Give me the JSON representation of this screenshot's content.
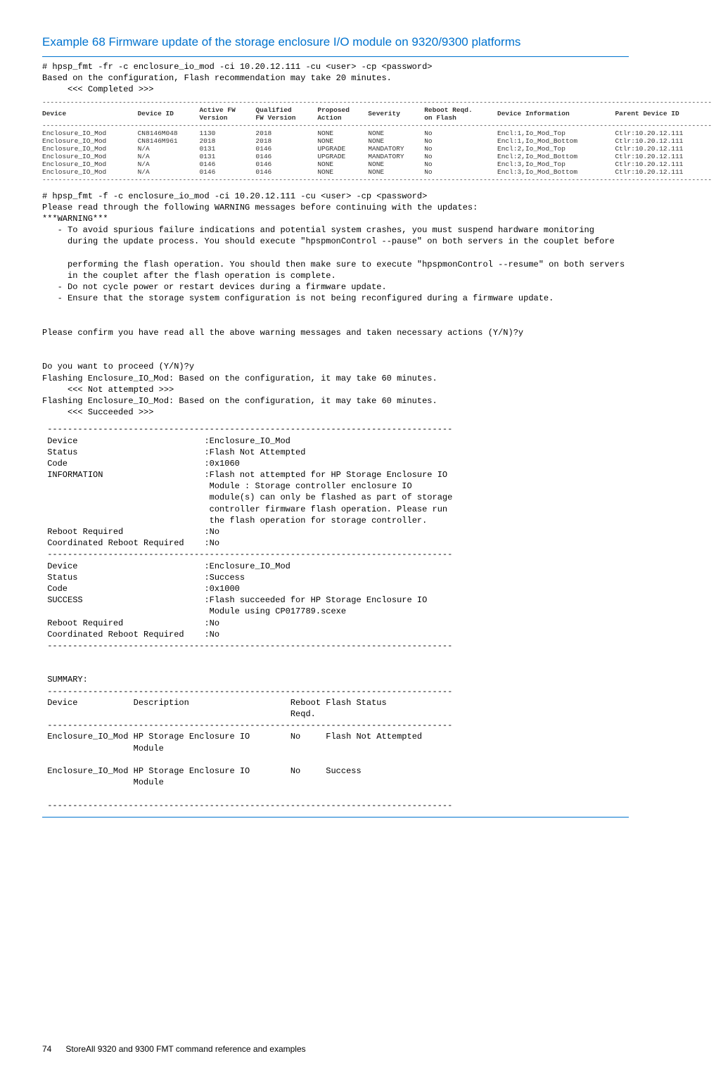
{
  "heading": "Example 68 Firmware update of the storage enclosure I/O module on 9320/9300 platforms",
  "cmd1_line1": "# hpsp_fmt -fr -c enclosure_io_mod -ci 10.20.12.111 -cu <user> -cp <password>",
  "cmd1_line2": "Based on the configuration, Flash recommendation may take 20 minutes.",
  "cmd1_line3": "     <<< Completed >>>",
  "table1": {
    "headers": [
      "Device",
      "Device ID",
      "Active FW\nVersion",
      "Qualified\nFW Version",
      "Proposed\nAction",
      "Severity",
      "Reboot Reqd.\non Flash",
      "Device Information",
      "Parent Device ID"
    ],
    "rows": [
      [
        "Enclosure_IO_Mod",
        "CN8146M048",
        "1130",
        "2018",
        "NONE",
        "NONE",
        "No",
        "Encl:1,Io_Mod_Top",
        "Ctlr:10.20.12.111"
      ],
      [
        "Enclosure_IO_Mod",
        "CN8146M961",
        "2018",
        "2018",
        "NONE",
        "NONE",
        "No",
        "Encl:1,Io_Mod_Bottom",
        "Ctlr:10.20.12.111"
      ],
      [
        "Enclosure_IO_Mod",
        "N/A",
        "0131",
        "0146",
        "UPGRADE",
        "MANDATORY",
        "No",
        "Encl:2,Io_Mod_Top",
        "Ctlr:10.20.12.111"
      ],
      [
        "Enclosure_IO_Mod",
        "N/A",
        "0131",
        "0146",
        "UPGRADE",
        "MANDATORY",
        "No",
        "Encl:2,Io_Mod_Bottom",
        "Ctlr:10.20.12.111"
      ],
      [
        "Enclosure_IO_Mod",
        "N/A",
        "0146",
        "0146",
        "NONE",
        "NONE",
        "No",
        "Encl:3,Io_Mod_Top",
        "Ctlr:10.20.12.111"
      ],
      [
        "Enclosure_IO_Mod",
        "N/A",
        "0146",
        "0146",
        "NONE",
        "NONE",
        "No",
        "Encl:3,Io_Mod_Bottom",
        "Ctlr:10.20.12.111"
      ]
    ]
  },
  "block2": "# hpsp_fmt -f -c enclosure_io_mod -ci 10.20.12.111 -cu <user> -cp <password>\nPlease read through the following WARNING messages before continuing with the updates:\n***WARNING***\n   - To avoid spurious failure indications and potential system crashes, you must suspend hardware monitoring\n     during the update process. You should execute \"hpspmonControl --pause\" on both servers in the couplet before\n\n     performing the flash operation. You should then make sure to execute \"hpspmonControl --resume\" on both servers\n     in the couplet after the flash operation is complete.\n   - Do not cycle power or restart devices during a firmware update.\n   - Ensure that the storage system configuration is not being reconfigured during a firmware update.\n\n\nPlease confirm you have read all the above warning messages and taken necessary actions (Y/N)?y\n\n\nDo you want to proceed (Y/N)?y\nFlashing Enclosure_IO_Mod: Based on the configuration, it may take 60 minutes.\n     <<< Not attempted >>>\nFlashing Enclosure_IO_Mod: Based on the configuration, it may take 60 minutes.\n     <<< Succeeded >>>\n",
  "block3": " --------------------------------------------------------------------------------\n Device                         :Enclosure_IO_Mod\n Status                         :Flash Not Attempted\n Code                           :0x1060\n INFORMATION                    :Flash not attempted for HP Storage Enclosure IO\n                                 Module : Storage controller enclosure IO\n                                 module(s) can only be flashed as part of storage\n                                 controller firmware flash operation. Please run\n                                 the flash operation for storage controller.\n Reboot Required                :No\n Coordinated Reboot Required    :No\n --------------------------------------------------------------------------------\n Device                         :Enclosure_IO_Mod\n Status                         :Success\n Code                           :0x1000\n SUCCESS                        :Flash succeeded for HP Storage Enclosure IO\n                                 Module using CP017789.scexe\n Reboot Required                :No\n Coordinated Reboot Required    :No\n --------------------------------------------------------------------------------\n\n\n SUMMARY:\n --------------------------------------------------------------------------------\n Device           Description                    Reboot Flash Status\n                                                 Reqd.\n --------------------------------------------------------------------------------\n Enclosure_IO_Mod HP Storage Enclosure IO        No     Flash Not Attempted\n                  Module\n\n Enclosure_IO_Mod HP Storage Enclosure IO        No     Success\n                  Module\n\n --------------------------------------------------------------------------------",
  "footer_page": "74",
  "footer_text": "StoreAll 9320 and 9300 FMT command reference and examples"
}
